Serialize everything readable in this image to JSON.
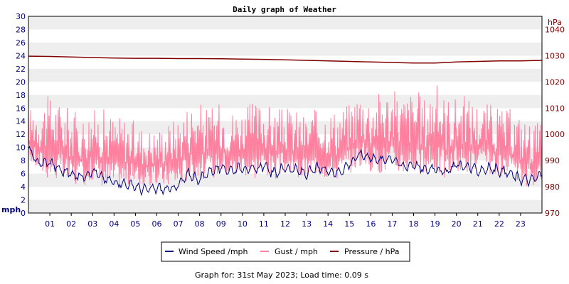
{
  "chart_data": {
    "type": "line",
    "title": "Daily graph of Weather",
    "left_axis": {
      "unit": "mph",
      "ylim": [
        0,
        30
      ],
      "ticks": [
        "0",
        "2",
        "4",
        "6",
        "8",
        "10",
        "12",
        "14",
        "16",
        "18",
        "20",
        "22",
        "24",
        "26",
        "28",
        "30"
      ]
    },
    "right_axis": {
      "unit": "hPa",
      "ylim": [
        970,
        1045
      ],
      "ticks": [
        "970",
        "980",
        "990",
        "1000",
        "1010",
        "1020",
        "1030",
        "1040"
      ]
    },
    "x_axis": {
      "xlim": [
        0,
        24
      ],
      "ticks": [
        "01",
        "02",
        "03",
        "04",
        "05",
        "06",
        "07",
        "08",
        "09",
        "10",
        "11",
        "12",
        "13",
        "14",
        "15",
        "16",
        "17",
        "18",
        "19",
        "20",
        "21",
        "22",
        "23"
      ]
    },
    "grid": "horizontal bands",
    "legend_position": "bottom",
    "series": [
      {
        "name": "Wind Speed /mph",
        "axis": "left",
        "color": "#000080",
        "x": [
          0,
          0.5,
          1,
          1.5,
          2,
          2.5,
          3,
          3.5,
          4,
          4.5,
          5,
          5.5,
          6,
          6.5,
          7,
          7.5,
          8,
          8.5,
          9,
          9.5,
          10,
          10.5,
          11,
          11.5,
          12,
          12.5,
          13,
          13.5,
          14,
          14.5,
          15,
          15.5,
          16,
          16.5,
          17,
          17.5,
          18,
          18.5,
          19,
          19.5,
          20,
          20.5,
          21,
          21.5,
          22,
          22.5,
          23,
          23.5,
          24
        ],
        "values": [
          9.5,
          7.5,
          7.8,
          6.5,
          6.0,
          5.5,
          6.5,
          5.2,
          4.8,
          4.5,
          4.0,
          3.5,
          3.8,
          3.5,
          4.2,
          6.0,
          5.0,
          6.5,
          6.8,
          6.5,
          7.0,
          6.5,
          7.2,
          6.0,
          7.0,
          6.5,
          6.0,
          6.8,
          6.5,
          6.2,
          7.5,
          9.0,
          8.5,
          8.0,
          8.5,
          7.0,
          7.5,
          6.5,
          7.0,
          6.0,
          7.5,
          7.0,
          6.5,
          6.8,
          6.5,
          6.0,
          5.2,
          5.0,
          5.8
        ]
      },
      {
        "name": "Gust / mph",
        "axis": "left",
        "color": "#ff7f9f",
        "x": [
          0,
          0.5,
          1,
          1.5,
          2,
          2.5,
          3,
          3.5,
          4,
          4.5,
          5,
          5.5,
          6,
          6.5,
          7,
          7.5,
          8,
          8.5,
          9,
          9.5,
          10,
          10.5,
          11,
          11.5,
          12,
          12.5,
          13,
          13.5,
          14,
          14.5,
          15,
          15.5,
          16,
          16.5,
          17,
          17.5,
          18,
          18.5,
          19,
          19.5,
          20,
          20.5,
          21,
          21.5,
          22,
          22.5,
          23,
          23.5,
          24
        ],
        "low": [
          8,
          6,
          5,
          5,
          4,
          4,
          5,
          4,
          4,
          4,
          4,
          4,
          4,
          4,
          4,
          5,
          5,
          5,
          6,
          5,
          6,
          5,
          6,
          5,
          6,
          5,
          5,
          6,
          5,
          5,
          6,
          7,
          6,
          6,
          6,
          6,
          6,
          5,
          6,
          5,
          6,
          6,
          6,
          6,
          5,
          5,
          4,
          4,
          5
        ],
        "high": [
          16,
          17,
          18,
          17,
          16,
          15,
          16,
          16,
          15,
          15,
          14,
          13,
          13,
          14,
          15,
          17,
          17,
          16,
          17,
          16,
          16,
          17,
          17,
          16,
          16,
          16,
          15,
          16,
          16,
          16,
          17,
          19,
          18,
          19,
          19,
          18,
          19,
          18,
          20,
          18,
          18,
          18,
          17,
          17,
          16,
          16,
          15,
          14,
          14
        ]
      },
      {
        "name": "Pressure / hPa",
        "axis": "right",
        "color": "#800000",
        "x": [
          0,
          1,
          2,
          3,
          4,
          5,
          6,
          7,
          8,
          9,
          10,
          11,
          12,
          13,
          14,
          15,
          16,
          17,
          18,
          19,
          20,
          21,
          22,
          23,
          24
        ],
        "values": [
          1029.8,
          1029.7,
          1029.5,
          1029.3,
          1029.1,
          1029.0,
          1029.0,
          1028.9,
          1028.9,
          1028.8,
          1028.7,
          1028.6,
          1028.4,
          1028.2,
          1028.0,
          1027.8,
          1027.6,
          1027.4,
          1027.2,
          1027.2,
          1027.6,
          1027.8,
          1028.0,
          1028.0,
          1028.2
        ]
      }
    ]
  },
  "footer": "Graph for: 31st May 2023; Load time: 0.09 s"
}
